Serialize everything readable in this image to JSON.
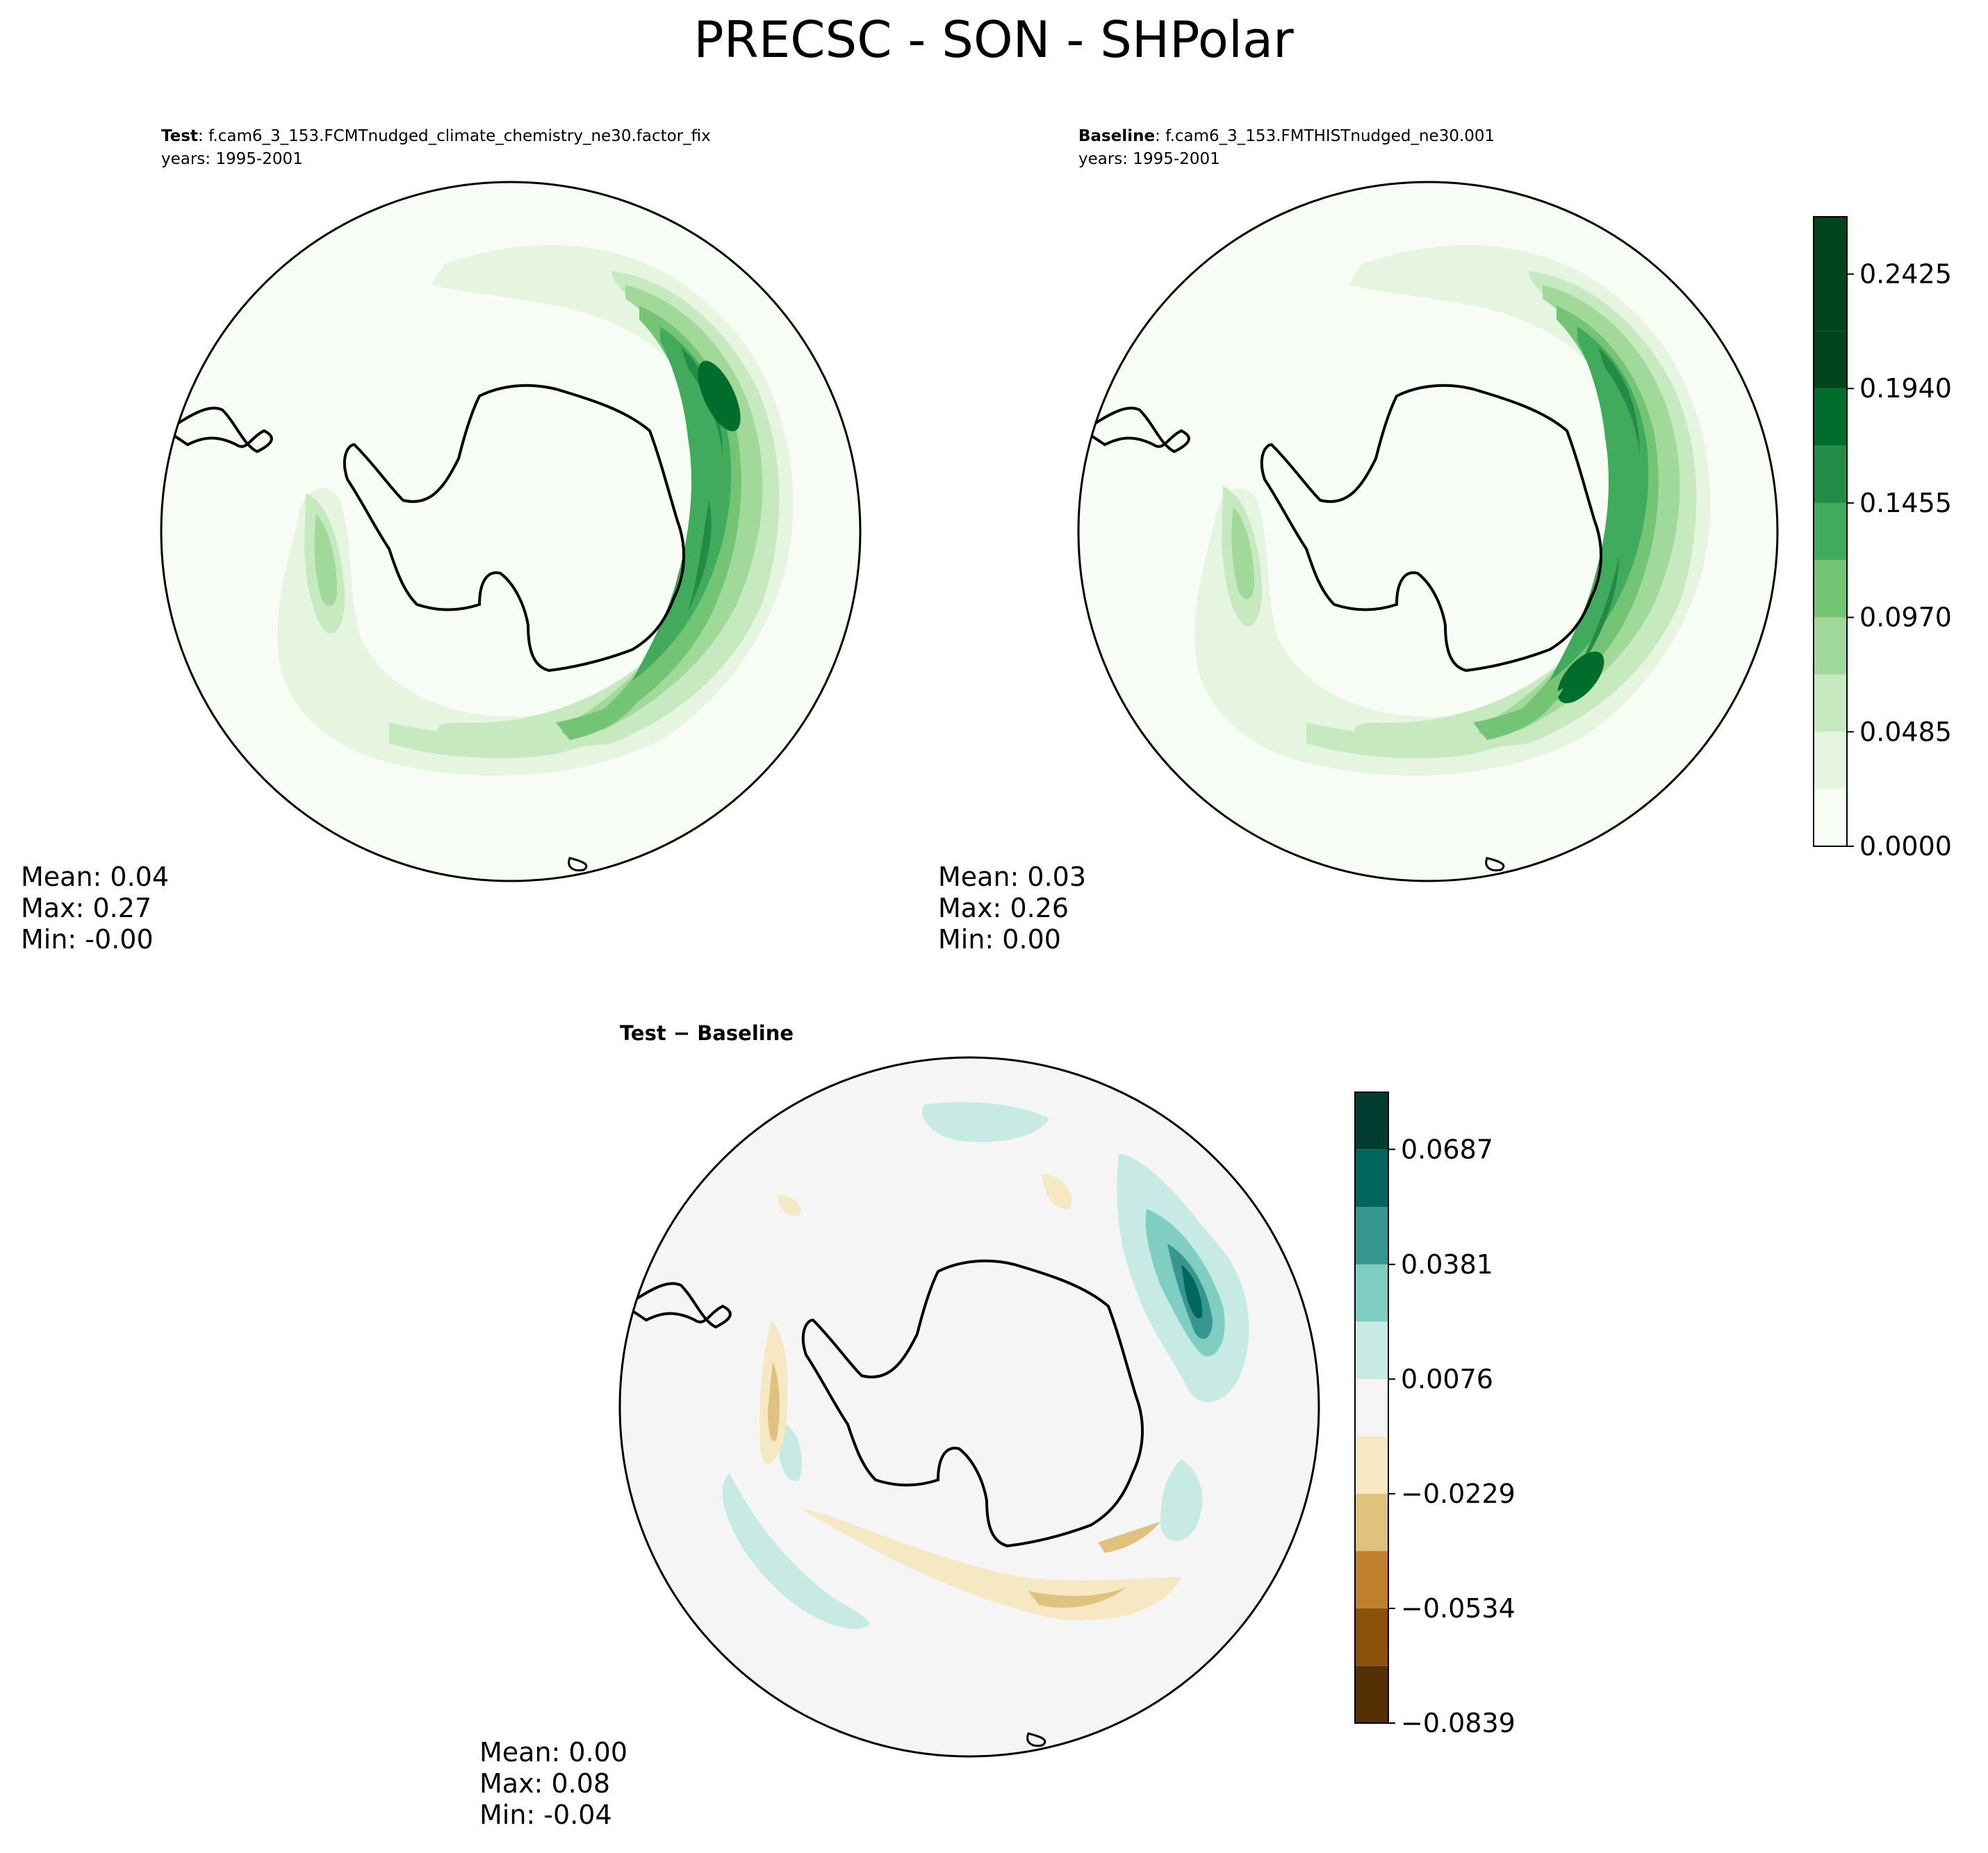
{
  "title": "PRECSC - SON - SHPolar",
  "colors": {
    "greens": [
      "#f7fcf5",
      "#e5f5e0",
      "#c7e9c0",
      "#a1d99b",
      "#74c476",
      "#41ab5d",
      "#238b45",
      "#006d2c",
      "#00441b"
    ],
    "diverging": [
      "#543005",
      "#8c510a",
      "#bf812d",
      "#dfc27d",
      "#f6e8c3",
      "#f5f5f5",
      "#c7eae5",
      "#80cdc1",
      "#35978f",
      "#01665e",
      "#003c30"
    ],
    "coast": "#000000"
  },
  "panels": {
    "test": {
      "label_bold": "Test",
      "label_rest": ": f.cam6_3_153.FCMTnudged_climate_chemistry_ne30.factor_fix",
      "years": "years: 1995-2001",
      "stats": {
        "mean": "Mean:  0.04",
        "max": "Max:  0.27",
        "min": "Min: -0.00"
      }
    },
    "baseline": {
      "label_bold": "Baseline",
      "label_rest": ": f.cam6_3_153.FMTHISTnudged_ne30.001",
      "years": "years: 1995-2001",
      "stats": {
        "mean": "Mean:  0.03",
        "max": "Max:  0.26",
        "min": "Min:  0.00"
      }
    },
    "diff": {
      "label": "Test − Baseline",
      "stats": {
        "mean": "Mean:  0.00",
        "max": "Max:  0.08",
        "min": "Min: -0.04"
      }
    }
  },
  "chart_data": [
    {
      "type": "heatmap",
      "projection": "south-polar-stereographic",
      "name": "Test",
      "stats": {
        "mean": 0.04,
        "max": 0.27,
        "min": -0.0
      },
      "colorbar_ticks": [
        "0.0000",
        "0.0485",
        "0.0970",
        "0.1455",
        "0.1940",
        "0.2425"
      ],
      "levels": [
        0.0,
        0.0243,
        0.0485,
        0.0728,
        0.097,
        0.1213,
        0.1455,
        0.1698,
        0.194,
        0.2183,
        0.2425,
        0.2668
      ]
    },
    {
      "type": "heatmap",
      "projection": "south-polar-stereographic",
      "name": "Baseline",
      "stats": {
        "mean": 0.03,
        "max": 0.26,
        "min": 0.0
      },
      "colorbar_ticks": [
        "0.0000",
        "0.0485",
        "0.0970",
        "0.1455",
        "0.1940",
        "0.2425"
      ],
      "levels": [
        0.0,
        0.0243,
        0.0485,
        0.0728,
        0.097,
        0.1213,
        0.1455,
        0.1698,
        0.194,
        0.2183,
        0.2425,
        0.2668
      ]
    },
    {
      "type": "heatmap",
      "projection": "south-polar-stereographic",
      "name": "Test − Baseline",
      "stats": {
        "mean": 0.0,
        "max": 0.08,
        "min": -0.04
      },
      "colorbar_ticks": [
        "−0.0839",
        "−0.0534",
        "−0.0229",
        "0.0076",
        "0.0381",
        "0.0687"
      ],
      "levels": [
        -0.0839,
        -0.0687,
        -0.0534,
        -0.0381,
        -0.0229,
        -0.0076,
        0.0076,
        0.0229,
        0.0381,
        0.0534,
        0.0687,
        0.0839
      ]
    }
  ]
}
